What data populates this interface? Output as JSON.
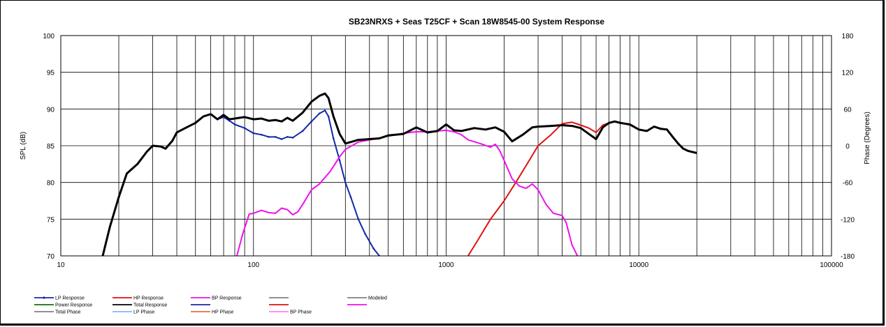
{
  "chart_data": {
    "type": "line",
    "title": "SB23NRXS + Seas T25CF + Scan 18W8545-00   System Response",
    "xlabel": "",
    "ylabel": "SPL (dB)",
    "y2label": "Phase (Degrees)",
    "xscale": "log",
    "xlim": [
      10,
      100000
    ],
    "ylim": [
      70,
      100
    ],
    "y2lim": [
      -180,
      180
    ],
    "grid": true,
    "legend_position": "bottom",
    "x_ticks": [
      "10",
      "100",
      "1000",
      "10000",
      "100000"
    ],
    "y_ticks": [
      "70",
      "75",
      "80",
      "85",
      "90",
      "95",
      "100"
    ],
    "y2_ticks": [
      "-180",
      "-120",
      "-60",
      "0",
      "60",
      "120",
      "180"
    ],
    "colors": {
      "lp": "#1428a8",
      "hp": "#e01010",
      "bp": "#ee10ee",
      "total": "#000000",
      "power": "#107010",
      "gray": "#808080",
      "lp_phase": "#80b8ff",
      "hp_phase": "#e07040",
      "bp_phase": "#ff80ff"
    },
    "series": [
      {
        "name": "LP Response",
        "color": "#1428a8",
        "points": [
          [
            16.5,
            70
          ],
          [
            18,
            74
          ],
          [
            20,
            78
          ],
          [
            22,
            81.2
          ],
          [
            25,
            82.5
          ],
          [
            28,
            84.2
          ],
          [
            30,
            85
          ],
          [
            33,
            84.9
          ],
          [
            35,
            84.6
          ],
          [
            38,
            85.7
          ],
          [
            40,
            86.8
          ],
          [
            45,
            87.5
          ],
          [
            50,
            88.1
          ],
          [
            55,
            89
          ],
          [
            60,
            89.3
          ],
          [
            65,
            88.6
          ],
          [
            70,
            88.9
          ],
          [
            75,
            88.4
          ],
          [
            80,
            87.9
          ],
          [
            90,
            87.4
          ],
          [
            100,
            86.7
          ],
          [
            110,
            86.5
          ],
          [
            120,
            86.2
          ],
          [
            130,
            86.2
          ],
          [
            140,
            85.9
          ],
          [
            150,
            86.2
          ],
          [
            160,
            86.1
          ],
          [
            180,
            87
          ],
          [
            200,
            88.3
          ],
          [
            220,
            89.4
          ],
          [
            235,
            89.8
          ],
          [
            245,
            89
          ],
          [
            260,
            86
          ],
          [
            280,
            83
          ],
          [
            300,
            80
          ],
          [
            320,
            78
          ],
          [
            350,
            75
          ],
          [
            380,
            73
          ],
          [
            420,
            71
          ],
          [
            450,
            70
          ]
        ]
      },
      {
        "name": "HP Response",
        "color": "#e01010",
        "points": [
          [
            1300,
            70
          ],
          [
            1450,
            72
          ],
          [
            1700,
            75
          ],
          [
            2000,
            77.5
          ],
          [
            2300,
            80
          ],
          [
            2700,
            83
          ],
          [
            3000,
            85
          ],
          [
            3500,
            86.5
          ],
          [
            4000,
            88
          ],
          [
            4500,
            88.2
          ],
          [
            5000,
            87.8
          ],
          [
            5500,
            87.4
          ],
          [
            6000,
            86.8
          ],
          [
            6500,
            87.8
          ],
          [
            7000,
            88.1
          ],
          [
            7500,
            88.3
          ],
          [
            8000,
            88.2
          ],
          [
            9000,
            87.8
          ],
          [
            10000,
            87.2
          ]
        ]
      },
      {
        "name": "BP Response",
        "color": "#ee10ee",
        "points": [
          [
            82,
            70
          ],
          [
            88,
            73
          ],
          [
            95,
            75.7
          ],
          [
            100,
            75.8
          ],
          [
            110,
            76.2
          ],
          [
            120,
            75.9
          ],
          [
            130,
            75.8
          ],
          [
            140,
            76.5
          ],
          [
            150,
            76.3
          ],
          [
            160,
            75.6
          ],
          [
            170,
            76
          ],
          [
            180,
            77
          ],
          [
            200,
            79
          ],
          [
            220,
            79.8
          ],
          [
            250,
            81.5
          ],
          [
            280,
            83.5
          ],
          [
            300,
            84.5
          ],
          [
            350,
            85.5
          ],
          [
            400,
            85.8
          ],
          [
            500,
            86.3
          ],
          [
            600,
            86.7
          ],
          [
            700,
            86.9
          ],
          [
            800,
            86.9
          ],
          [
            1000,
            87.1
          ],
          [
            1100,
            86.9
          ],
          [
            1200,
            86.5
          ],
          [
            1300,
            85.8
          ],
          [
            1500,
            85.3
          ],
          [
            1700,
            84.8
          ],
          [
            1800,
            85.2
          ],
          [
            1900,
            84.3
          ],
          [
            2000,
            83
          ],
          [
            2200,
            80.5
          ],
          [
            2400,
            79.5
          ],
          [
            2600,
            79.2
          ],
          [
            2800,
            79.8
          ],
          [
            3000,
            79
          ],
          [
            3300,
            77
          ],
          [
            3600,
            75.8
          ],
          [
            4000,
            75.5
          ],
          [
            4200,
            74.5
          ],
          [
            4500,
            71.5
          ],
          [
            4800,
            70
          ]
        ]
      },
      {
        "name": "Total Response",
        "color": "#000000",
        "points": [
          [
            16.5,
            70
          ],
          [
            18,
            74
          ],
          [
            20,
            78
          ],
          [
            22,
            81.2
          ],
          [
            25,
            82.5
          ],
          [
            28,
            84.2
          ],
          [
            30,
            85
          ],
          [
            33,
            84.9
          ],
          [
            35,
            84.6
          ],
          [
            38,
            85.7
          ],
          [
            40,
            86.8
          ],
          [
            45,
            87.5
          ],
          [
            50,
            88.1
          ],
          [
            55,
            89
          ],
          [
            60,
            89.3
          ],
          [
            65,
            88.6
          ],
          [
            70,
            89.2
          ],
          [
            75,
            88.6
          ],
          [
            80,
            88.7
          ],
          [
            90,
            88.9
          ],
          [
            100,
            88.6
          ],
          [
            110,
            88.7
          ],
          [
            120,
            88.4
          ],
          [
            130,
            88.5
          ],
          [
            140,
            88.3
          ],
          [
            150,
            88.8
          ],
          [
            160,
            88.4
          ],
          [
            180,
            89.5
          ],
          [
            200,
            91
          ],
          [
            220,
            91.8
          ],
          [
            235,
            92.1
          ],
          [
            245,
            91.5
          ],
          [
            260,
            89
          ],
          [
            280,
            86.6
          ],
          [
            300,
            85.3
          ],
          [
            320,
            85.5
          ],
          [
            350,
            85.8
          ],
          [
            400,
            85.9
          ],
          [
            450,
            86
          ],
          [
            500,
            86.4
          ],
          [
            600,
            86.6
          ],
          [
            700,
            87.5
          ],
          [
            800,
            86.8
          ],
          [
            900,
            87
          ],
          [
            1000,
            87.9
          ],
          [
            1100,
            87.1
          ],
          [
            1200,
            87
          ],
          [
            1400,
            87.4
          ],
          [
            1600,
            87.2
          ],
          [
            1800,
            87.5
          ],
          [
            2000,
            86.9
          ],
          [
            2200,
            85.6
          ],
          [
            2500,
            86.5
          ],
          [
            2800,
            87.5
          ],
          [
            3000,
            87.6
          ],
          [
            3500,
            87.7
          ],
          [
            4000,
            87.8
          ],
          [
            4500,
            87.7
          ],
          [
            5000,
            87.4
          ],
          [
            5500,
            86.6
          ],
          [
            6000,
            85.9
          ],
          [
            6500,
            87.5
          ],
          [
            7000,
            88.1
          ],
          [
            7500,
            88.3
          ],
          [
            8000,
            88.1
          ],
          [
            9000,
            87.9
          ],
          [
            10000,
            87.2
          ],
          [
            11000,
            87
          ],
          [
            12000,
            87.6
          ],
          [
            13000,
            87.3
          ],
          [
            14000,
            87.2
          ],
          [
            15000,
            86.2
          ],
          [
            16000,
            85.3
          ],
          [
            17000,
            84.6
          ],
          [
            18000,
            84.3
          ],
          [
            20000,
            84
          ]
        ]
      }
    ],
    "legend": [
      [
        {
          "label": "LP Response",
          "color": "#1428a8",
          "marker": true
        },
        {
          "label": "HP Response",
          "color": "#e01010",
          "marker": false
        },
        {
          "label": "BP Response",
          "color": "#ee10ee",
          "marker": false
        },
        {
          "label": "",
          "color": "#808080",
          "marker": false
        },
        {
          "label": "Modeled",
          "color": "#808080",
          "marker": false
        }
      ],
      [
        {
          "label": "Power Response",
          "color": "#107010",
          "marker": false
        },
        {
          "label": "Total Response",
          "color": "#000000",
          "marker": false
        },
        {
          "label": "",
          "color": "#1428a8",
          "marker": false
        },
        {
          "label": "",
          "color": "#e01010",
          "marker": false
        },
        {
          "label": "",
          "color": "#ee10ee",
          "marker": false
        }
      ],
      [
        {
          "label": "Total Phase",
          "color": "#808080",
          "marker": false
        },
        {
          "label": "LP Phase",
          "color": "#80b8ff",
          "marker": false
        },
        {
          "label": "HP Phase",
          "color": "#e07040",
          "marker": false
        },
        {
          "label": "BP Phase",
          "color": "#ff80ff",
          "marker": false
        }
      ]
    ]
  }
}
